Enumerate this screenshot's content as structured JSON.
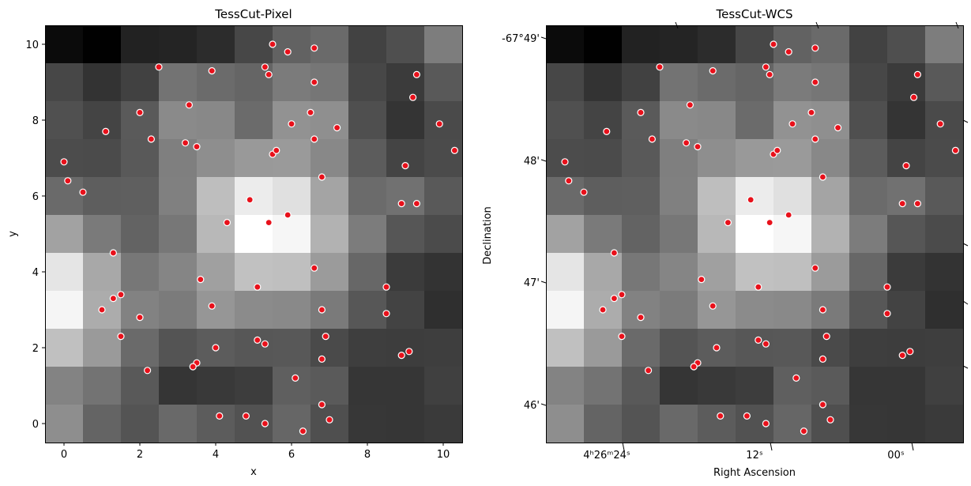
{
  "chart_data": [
    {
      "type": "heatmap",
      "title": "TessCut-Pixel",
      "xlabel": "x",
      "ylabel": "y",
      "xlim": [
        -0.5,
        10.5
      ],
      "ylim": [
        -0.5,
        10.5
      ],
      "xticks": [
        0,
        2,
        4,
        6,
        8,
        10
      ],
      "yticks": [
        0,
        2,
        4,
        6,
        8,
        10
      ],
      "xtick_labels": [
        "0",
        "2",
        "4",
        "6",
        "8",
        "10"
      ],
      "ytick_labels": [
        "0",
        "2",
        "4",
        "6",
        "8",
        "10"
      ],
      "colormap": "gray",
      "grid": false,
      "legend": "none",
      "cell_colors_top_to_bottom": [
        [
          "#0b0b0b",
          "#010101",
          "#222222",
          "#242424",
          "#2c2c2c",
          "#474747",
          "#626262",
          "#6a6a6a",
          "#424242",
          "#4f4f4f",
          "#7d7d7d"
        ],
        [
          "#474747",
          "#333333",
          "#414141",
          "#737373",
          "#6b6b6b",
          "#656565",
          "#7b7b7b",
          "#767676",
          "#474747",
          "#3b3b3b",
          "#595959"
        ],
        [
          "#505050",
          "#444444",
          "#5a5a5a",
          "#8a8a8a",
          "#888888",
          "#6b6b6b",
          "#929292",
          "#8f8f8f",
          "#4f4f4f",
          "#343434",
          "#4a4a4a"
        ],
        [
          "#4c4c4c",
          "#4b4b4b",
          "#595959",
          "#7f7f7f",
          "#8e8e8e",
          "#999999",
          "#9a9a9a",
          "#888888",
          "#5c5c5c",
          "#444444",
          "#4b4b4b"
        ],
        [
          "#6a6a6a",
          "#5e5e5e",
          "#5f5f5f",
          "#808080",
          "#bebebe",
          "#ececec",
          "#e0e0e0",
          "#a4a4a4",
          "#6b6b6b",
          "#717171",
          "#595959"
        ],
        [
          "#a2a2a2",
          "#7a7a7a",
          "#636363",
          "#777777",
          "#b8b8b8",
          "#ffffff",
          "#f6f6f6",
          "#b2b2b2",
          "#7c7c7c",
          "#565656",
          "#4b4b4b"
        ],
        [
          "#e5e5e5",
          "#a8a8a8",
          "#777777",
          "#858585",
          "#a0a0a0",
          "#c1c1c1",
          "#bfbfbf",
          "#9b9b9b",
          "#676767",
          "#3b3b3b",
          "#333333"
        ],
        [
          "#f5f5f5",
          "#acacac",
          "#828282",
          "#7b7b7b",
          "#969696",
          "#8b8b8b",
          "#898989",
          "#7a7a7a",
          "#575757",
          "#434343",
          "#2f2f2f"
        ],
        [
          "#c0c0c0",
          "#9a9a9a",
          "#6a6a6a",
          "#545454",
          "#5c5c5c",
          "#575757",
          "#585858",
          "#4a4a4a",
          "#3e3e3e",
          "#3d3d3d",
          "#3e3e3e"
        ],
        [
          "#838383",
          "#737373",
          "#595959",
          "#353535",
          "#393939",
          "#3d3d3d",
          "#5f5f5f",
          "#5a5a5a",
          "#363636",
          "#363636",
          "#404040"
        ],
        [
          "#8e8e8e",
          "#646464",
          "#545454",
          "#696969",
          "#5c5c5c",
          "#525252",
          "#666666",
          "#4f4f4f",
          "#373737",
          "#363636",
          "#3a3a3a"
        ]
      ],
      "marker_color": "#e8111b",
      "points_xy": [
        [
          5.5,
          10.0
        ],
        [
          5.9,
          9.8
        ],
        [
          6.6,
          9.9
        ],
        [
          2.5,
          9.4
        ],
        [
          3.9,
          9.3
        ],
        [
          5.3,
          9.4
        ],
        [
          5.4,
          9.2
        ],
        [
          6.6,
          9.0
        ],
        [
          9.3,
          9.2
        ],
        [
          9.2,
          8.6
        ],
        [
          3.3,
          8.4
        ],
        [
          2.0,
          8.2
        ],
        [
          6.5,
          8.2
        ],
        [
          6.0,
          7.9
        ],
        [
          7.2,
          7.8
        ],
        [
          9.9,
          7.9
        ],
        [
          1.1,
          7.7
        ],
        [
          2.3,
          7.5
        ],
        [
          6.6,
          7.5
        ],
        [
          3.2,
          7.4
        ],
        [
          3.5,
          7.3
        ],
        [
          5.5,
          7.1
        ],
        [
          5.6,
          7.2
        ],
        [
          10.3,
          7.2
        ],
        [
          0.0,
          6.9
        ],
        [
          9.0,
          6.8
        ],
        [
          0.1,
          6.4
        ],
        [
          6.8,
          6.5
        ],
        [
          0.5,
          6.1
        ],
        [
          4.9,
          5.9
        ],
        [
          8.9,
          5.8
        ],
        [
          9.3,
          5.8
        ],
        [
          5.9,
          5.5
        ],
        [
          4.3,
          5.3
        ],
        [
          5.4,
          5.3
        ],
        [
          1.3,
          4.5
        ],
        [
          6.6,
          4.1
        ],
        [
          3.6,
          3.8
        ],
        [
          5.1,
          3.6
        ],
        [
          8.5,
          3.6
        ],
        [
          1.5,
          3.4
        ],
        [
          1.3,
          3.3
        ],
        [
          3.9,
          3.1
        ],
        [
          1.0,
          3.0
        ],
        [
          6.8,
          3.0
        ],
        [
          2.0,
          2.8
        ],
        [
          8.5,
          2.9
        ],
        [
          1.5,
          2.3
        ],
        [
          5.1,
          2.2
        ],
        [
          5.3,
          2.1
        ],
        [
          6.9,
          2.3
        ],
        [
          4.0,
          2.0
        ],
        [
          9.1,
          1.9
        ],
        [
          8.9,
          1.8
        ],
        [
          6.8,
          1.7
        ],
        [
          3.5,
          1.6
        ],
        [
          3.4,
          1.5
        ],
        [
          2.2,
          1.4
        ],
        [
          6.1,
          1.2
        ],
        [
          6.8,
          0.5
        ],
        [
          4.1,
          0.2
        ],
        [
          4.8,
          0.2
        ],
        [
          7.0,
          0.1
        ],
        [
          5.3,
          0.0
        ],
        [
          6.3,
          -0.2
        ]
      ]
    },
    {
      "type": "heatmap",
      "title": "TessCut-WCS",
      "xlabel": "Right Ascension",
      "ylabel": "Declination",
      "xtick_labels": [
        "4ʰ26ᵐ24ˢ",
        "12ˢ",
        "00ˢ"
      ],
      "ytick_labels": [
        "-67°49'",
        "48'",
        "47'",
        "46'"
      ],
      "colormap": "gray",
      "grid": false,
      "legend": "none",
      "same_image_as_left_panel": true
    }
  ]
}
